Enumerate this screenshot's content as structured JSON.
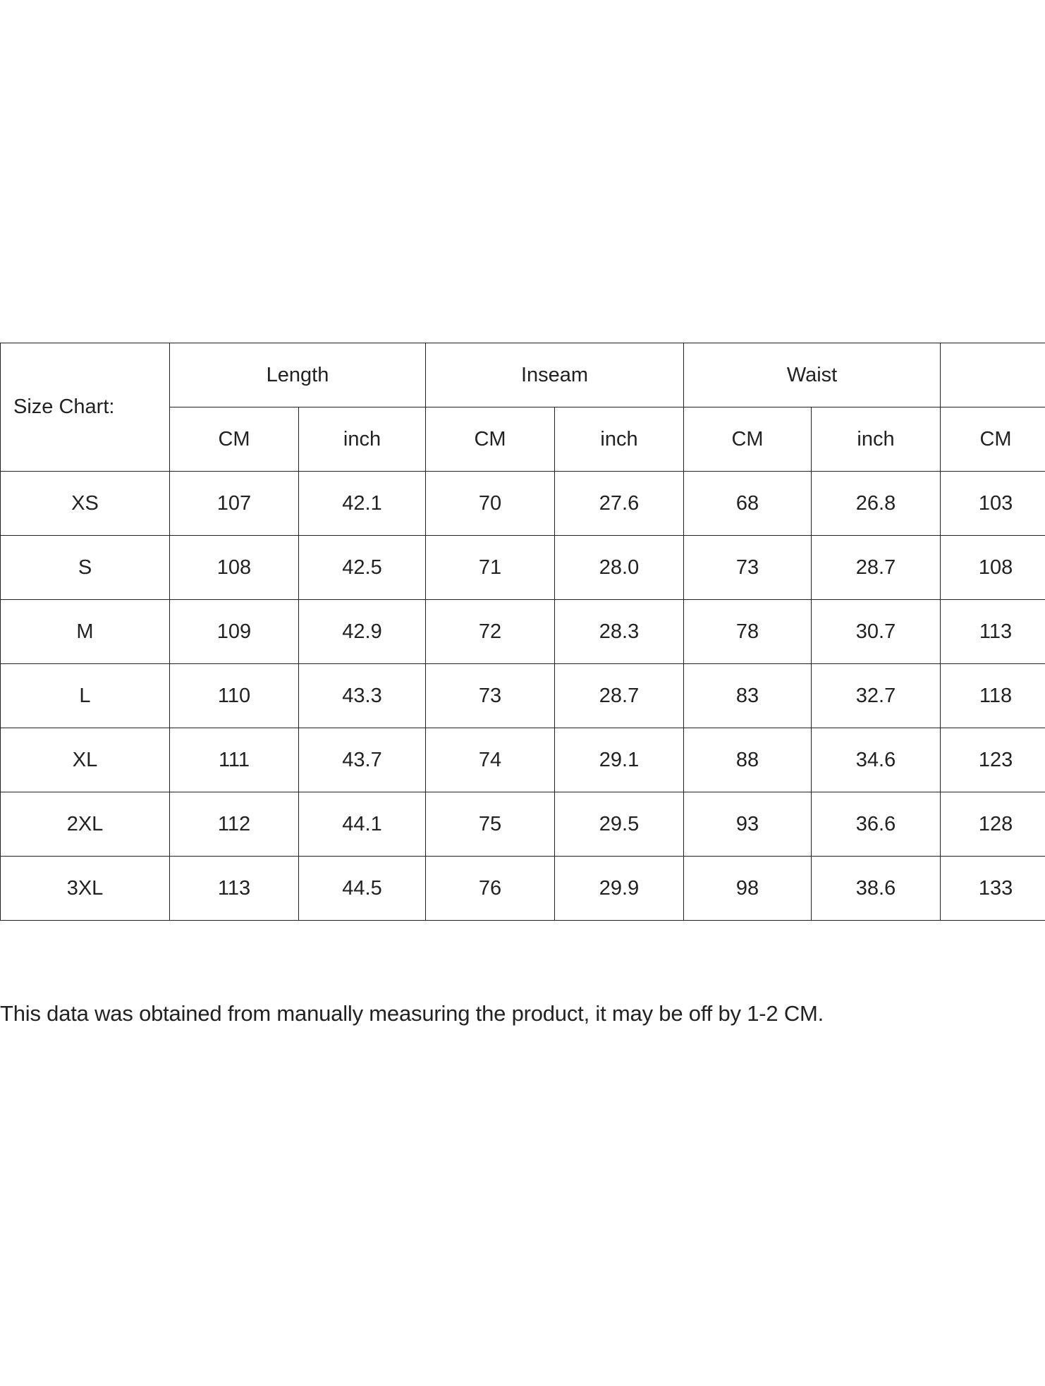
{
  "table": {
    "corner_label": "Size Chart:",
    "groups": [
      "Length",
      "Inseam",
      "Waist",
      ""
    ],
    "units": [
      "CM",
      "inch",
      "CM",
      "inch",
      "CM",
      "inch",
      "CM"
    ],
    "rows": [
      {
        "size": "XS",
        "values": [
          "107",
          "42.1",
          "70",
          "27.6",
          "68",
          "26.8",
          "103"
        ]
      },
      {
        "size": "S",
        "values": [
          "108",
          "42.5",
          "71",
          "28.0",
          "73",
          "28.7",
          "108"
        ]
      },
      {
        "size": "M",
        "values": [
          "109",
          "42.9",
          "72",
          "28.3",
          "78",
          "30.7",
          "113"
        ]
      },
      {
        "size": "L",
        "values": [
          "110",
          "43.3",
          "73",
          "28.7",
          "83",
          "32.7",
          "118"
        ]
      },
      {
        "size": "XL",
        "values": [
          "111",
          "43.7",
          "74",
          "29.1",
          "88",
          "34.6",
          "123"
        ]
      },
      {
        "size": "2XL",
        "values": [
          "112",
          "44.1",
          "75",
          "29.5",
          "93",
          "36.6",
          "128"
        ]
      },
      {
        "size": "3XL",
        "values": [
          "113",
          "44.5",
          "76",
          "29.9",
          "98",
          "38.6",
          "133"
        ]
      }
    ]
  },
  "note": "This data was obtained from manually measuring the product, it may be off by 1-2 CM."
}
